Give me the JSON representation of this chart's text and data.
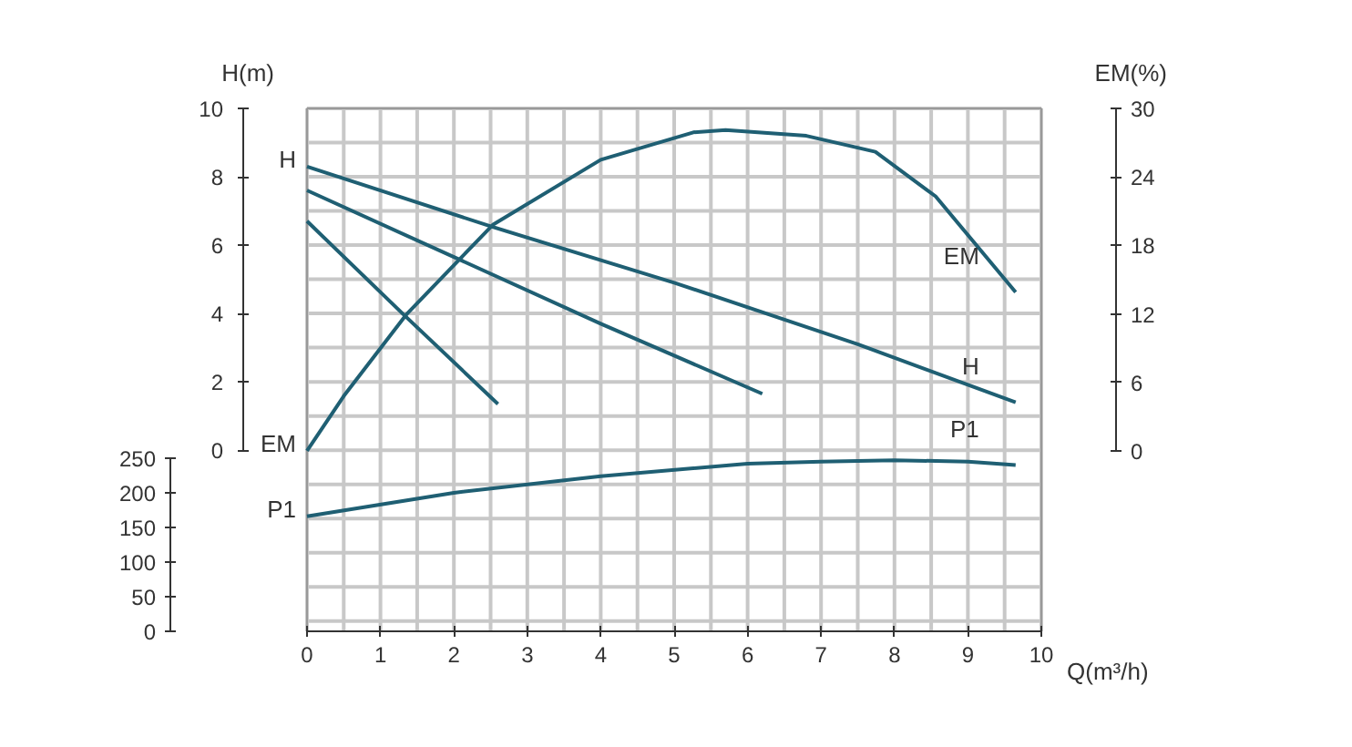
{
  "chart_data": {
    "type": "line",
    "xlabel": "Q(m³/h)",
    "ylabel": "H(m)",
    "y2label": "EM(%)",
    "xlim": [
      0,
      10
    ],
    "xticks": [
      0,
      1,
      2,
      3,
      4,
      5,
      6,
      7,
      8,
      9,
      10
    ],
    "ylim": [
      -5.3,
      10
    ],
    "yticks": [
      0,
      2,
      4,
      6,
      8,
      10
    ],
    "y2lim": [
      -15.8,
      30
    ],
    "y2ticks": [
      0,
      6,
      12,
      18,
      24,
      30
    ],
    "y3lim": [
      0,
      755
    ],
    "y3ticks": [
      0,
      50,
      100,
      150,
      200,
      250
    ],
    "grid": true,
    "line_style": "solid",
    "marker": "none",
    "series": [
      {
        "name": "H",
        "color": "#1f5f73",
        "axis": "y",
        "x": [
          0,
          2.5,
          5,
          7.5,
          9.65
        ],
        "values": [
          8.3,
          6.55,
          4.9,
          3.1,
          1.4
        ]
      },
      {
        "color": "#1f5f73",
        "axis": "y",
        "x": [
          0,
          2,
          4,
          6.2
        ],
        "values": [
          7.6,
          5.65,
          3.7,
          1.65
        ]
      },
      {
        "color": "#1f5f73",
        "axis": "y",
        "x": [
          0,
          1.3,
          2.6
        ],
        "values": [
          6.7,
          4.0,
          1.35
        ]
      },
      {
        "name": "EM",
        "color": "#1f5f73",
        "axis": "y2",
        "x": [
          0,
          0.5,
          1.36,
          2.53,
          4,
          5.26,
          5.7,
          6.8,
          7.74,
          8.56,
          9.65
        ],
        "values": [
          0,
          4.8,
          12,
          19.8,
          25.5,
          27.9,
          28.1,
          27.6,
          26.2,
          22.3,
          13.9
        ]
      },
      {
        "name": "P1",
        "color": "#1f5f73",
        "axis": "y3",
        "x": [
          0,
          2,
          4,
          6,
          7,
          8,
          9,
          9.65
        ],
        "values": [
          166,
          200,
          224,
          242,
          245,
          247,
          245,
          240
        ]
      }
    ]
  }
}
